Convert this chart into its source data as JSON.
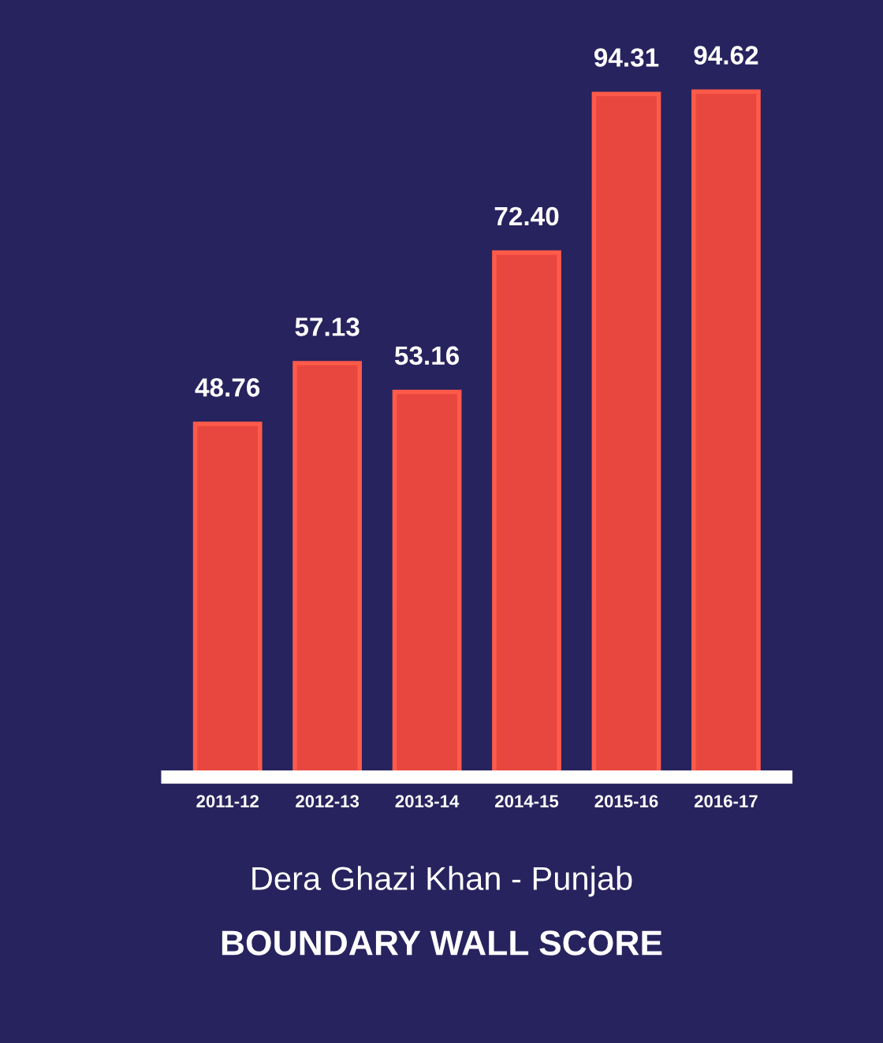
{
  "chart_data": {
    "type": "bar",
    "title": "BOUNDARY WALL SCORE",
    "subtitle": "Dera Ghazi Khan - Punjab",
    "categories": [
      "2011-12",
      "2012-13",
      "2013-14",
      "2014-15",
      "2015-16",
      "2016-17"
    ],
    "values": [
      48.76,
      57.13,
      53.16,
      72.4,
      94.31,
      94.62
    ],
    "value_labels": [
      "48.76",
      "57.13",
      "53.16",
      "72.40",
      "94.31",
      "94.62"
    ],
    "color": "#e8473f",
    "tick_labels": "x",
    "grid": false,
    "legend": false
  }
}
